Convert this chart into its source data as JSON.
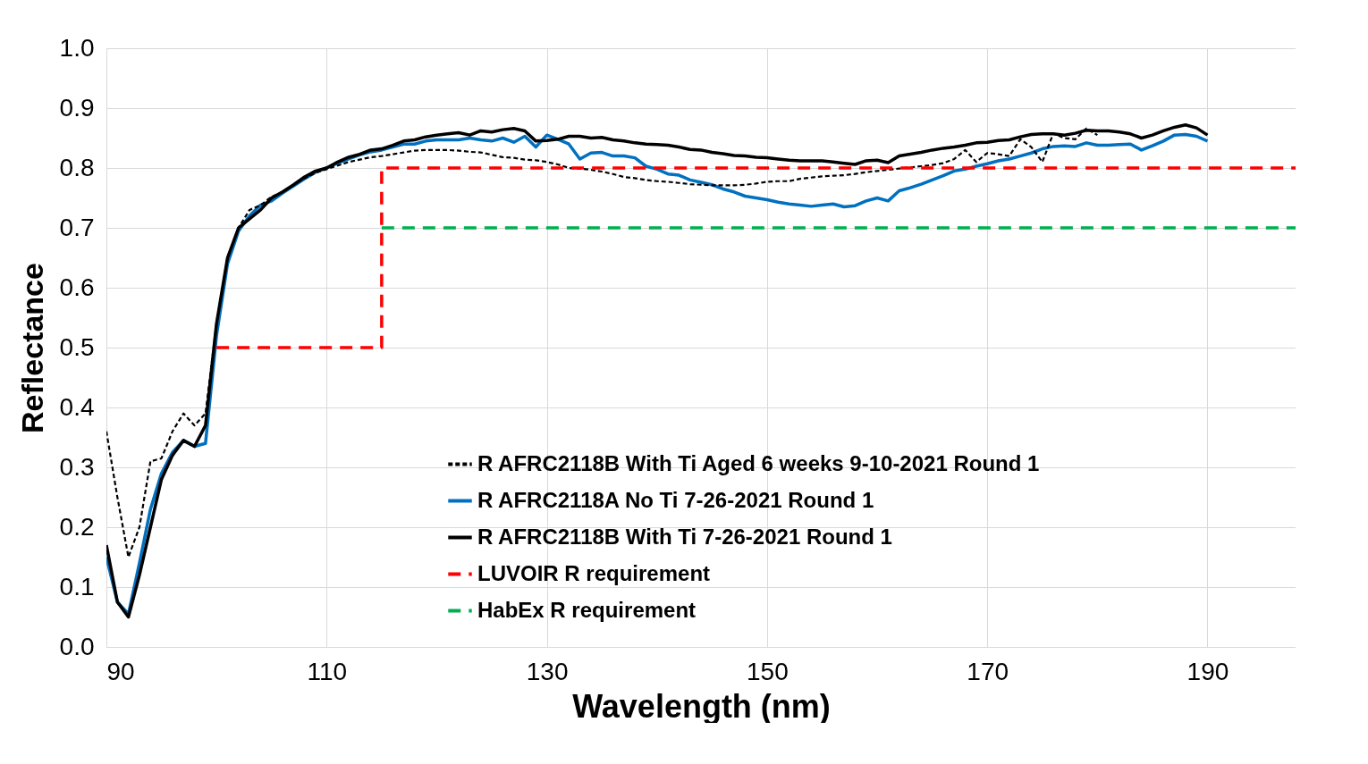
{
  "chart_data": {
    "type": "line",
    "xlabel": "Wavelength (nm)",
    "ylabel": "Reflectance",
    "xlim": [
      90,
      198
    ],
    "xticks": [
      90,
      110,
      130,
      150,
      170,
      190
    ],
    "ylim": [
      0,
      1
    ],
    "yticks": [
      {
        "value": 0,
        "label": "0.0"
      },
      0.1,
      0.2,
      0.3,
      0.4,
      0.5,
      0.6,
      0.7,
      0.8,
      0.9,
      {
        "value": 1,
        "label": "1.0"
      }
    ],
    "grid": true,
    "legend": "bottom",
    "marker": "none",
    "series": [
      {
        "name": "R AFRC2118B With Ti Aged 6 weeks 9-10-2021 Round 1",
        "color": "#000000",
        "line_style": "dotted",
        "x": [
          90,
          91,
          92,
          93,
          94,
          95,
          96,
          97,
          98,
          99,
          100,
          101,
          102,
          103,
          104,
          105,
          106,
          107,
          108,
          109,
          110,
          111,
          112,
          113,
          114,
          115,
          116,
          117,
          118,
          119,
          120,
          121,
          122,
          123,
          124,
          125,
          126,
          127,
          128,
          129,
          130,
          131,
          132,
          133,
          134,
          135,
          136,
          137,
          138,
          139,
          140,
          141,
          142,
          143,
          144,
          145,
          146,
          147,
          148,
          149,
          150,
          151,
          152,
          153,
          154,
          155,
          156,
          157,
          158,
          159,
          160,
          161,
          162,
          163,
          164,
          165,
          166,
          167,
          168,
          169,
          170,
          171,
          172,
          173,
          174,
          175,
          176,
          177,
          178,
          179,
          180
        ],
        "values": [
          0.36,
          0.25,
          0.15,
          0.2,
          0.31,
          0.315,
          0.36,
          0.39,
          0.37,
          0.39,
          0.54,
          0.65,
          0.7,
          0.73,
          0.738,
          0.752,
          0.76,
          0.772,
          0.783,
          0.792,
          0.798,
          0.804,
          0.81,
          0.814,
          0.818,
          0.82,
          0.823,
          0.826,
          0.829,
          0.83,
          0.83,
          0.83,
          0.829,
          0.827,
          0.826,
          0.822,
          0.818,
          0.817,
          0.814,
          0.813,
          0.81,
          0.806,
          0.8,
          0.799,
          0.797,
          0.794,
          0.79,
          0.785,
          0.783,
          0.78,
          0.778,
          0.777,
          0.775,
          0.773,
          0.772,
          0.771,
          0.771,
          0.771,
          0.772,
          0.774,
          0.777,
          0.778,
          0.778,
          0.782,
          0.784,
          0.786,
          0.787,
          0.788,
          0.79,
          0.793,
          0.795,
          0.797,
          0.799,
          0.801,
          0.803,
          0.805,
          0.808,
          0.815,
          0.83,
          0.81,
          0.825,
          0.823,
          0.82,
          0.848,
          0.835,
          0.81,
          0.858,
          0.85,
          0.848,
          0.866,
          0.855
        ]
      },
      {
        "name": "R AFRC2118A No Ti 7-26-2021 Round 1",
        "color": "#0070c0",
        "line_style": "solid",
        "x": [
          90,
          91,
          92,
          93,
          94,
          95,
          96,
          97,
          98,
          99,
          100,
          101,
          102,
          103,
          104,
          105,
          106,
          107,
          108,
          109,
          110,
          111,
          112,
          113,
          114,
          115,
          116,
          117,
          118,
          119,
          120,
          121,
          122,
          123,
          124,
          125,
          126,
          127,
          128,
          129,
          130,
          131,
          132,
          133,
          134,
          135,
          136,
          137,
          138,
          139,
          140,
          141,
          142,
          143,
          144,
          145,
          146,
          147,
          148,
          149,
          150,
          151,
          152,
          153,
          154,
          155,
          156,
          157,
          158,
          159,
          160,
          161,
          162,
          163,
          164,
          165,
          166,
          167,
          168,
          169,
          170,
          171,
          172,
          173,
          174,
          175,
          176,
          177,
          178,
          179,
          180,
          181,
          182,
          183,
          184,
          185,
          186,
          187,
          188,
          189,
          190
        ],
        "values": [
          0.15,
          0.075,
          0.055,
          0.14,
          0.23,
          0.29,
          0.325,
          0.345,
          0.335,
          0.34,
          0.52,
          0.64,
          0.695,
          0.72,
          0.738,
          0.745,
          0.758,
          0.77,
          0.782,
          0.793,
          0.8,
          0.808,
          0.815,
          0.822,
          0.827,
          0.83,
          0.835,
          0.84,
          0.84,
          0.845,
          0.847,
          0.847,
          0.847,
          0.85,
          0.847,
          0.845,
          0.85,
          0.843,
          0.853,
          0.835,
          0.855,
          0.848,
          0.84,
          0.815,
          0.825,
          0.826,
          0.82,
          0.82,
          0.817,
          0.803,
          0.798,
          0.79,
          0.788,
          0.78,
          0.776,
          0.772,
          0.765,
          0.76,
          0.753,
          0.75,
          0.747,
          0.743,
          0.74,
          0.738,
          0.736,
          0.738,
          0.74,
          0.735,
          0.737,
          0.745,
          0.75,
          0.745,
          0.762,
          0.767,
          0.773,
          0.78,
          0.787,
          0.795,
          0.798,
          0.803,
          0.807,
          0.812,
          0.815,
          0.82,
          0.825,
          0.832,
          0.836,
          0.837,
          0.836,
          0.842,
          0.838,
          0.838,
          0.839,
          0.84,
          0.83,
          0.837,
          0.845,
          0.855,
          0.856,
          0.853,
          0.845
        ]
      },
      {
        "name": "R AFRC2118B With Ti 7-26-2021 Round 1",
        "color": "#000000",
        "line_style": "solid",
        "x": [
          90,
          91,
          92,
          93,
          94,
          95,
          96,
          97,
          98,
          99,
          100,
          101,
          102,
          103,
          104,
          105,
          106,
          107,
          108,
          109,
          110,
          111,
          112,
          113,
          114,
          115,
          116,
          117,
          118,
          119,
          120,
          121,
          122,
          123,
          124,
          125,
          126,
          127,
          128,
          129,
          130,
          131,
          132,
          133,
          134,
          135,
          136,
          137,
          138,
          139,
          140,
          141,
          142,
          143,
          144,
          145,
          146,
          147,
          148,
          149,
          150,
          151,
          152,
          153,
          154,
          155,
          156,
          157,
          158,
          159,
          160,
          161,
          162,
          163,
          164,
          165,
          166,
          167,
          168,
          169,
          170,
          171,
          172,
          173,
          174,
          175,
          176,
          177,
          178,
          179,
          180,
          181,
          182,
          183,
          184,
          185,
          186,
          187,
          188,
          189,
          190
        ],
        "values": [
          0.17,
          0.075,
          0.05,
          0.12,
          0.2,
          0.28,
          0.32,
          0.345,
          0.335,
          0.37,
          0.54,
          0.65,
          0.7,
          0.715,
          0.73,
          0.75,
          0.76,
          0.772,
          0.785,
          0.795,
          0.8,
          0.81,
          0.818,
          0.823,
          0.83,
          0.832,
          0.838,
          0.845,
          0.847,
          0.852,
          0.855,
          0.857,
          0.859,
          0.855,
          0.862,
          0.86,
          0.864,
          0.866,
          0.862,
          0.845,
          0.846,
          0.848,
          0.853,
          0.853,
          0.85,
          0.851,
          0.847,
          0.845,
          0.842,
          0.84,
          0.839,
          0.838,
          0.835,
          0.831,
          0.83,
          0.826,
          0.824,
          0.821,
          0.82,
          0.818,
          0.817,
          0.815,
          0.813,
          0.812,
          0.812,
          0.812,
          0.81,
          0.808,
          0.806,
          0.812,
          0.813,
          0.809,
          0.82,
          0.823,
          0.826,
          0.83,
          0.833,
          0.835,
          0.838,
          0.842,
          0.843,
          0.846,
          0.847,
          0.852,
          0.856,
          0.857,
          0.857,
          0.855,
          0.858,
          0.863,
          0.862,
          0.862,
          0.86,
          0.857,
          0.85,
          0.855,
          0.862,
          0.868,
          0.872,
          0.867,
          0.855
        ]
      },
      {
        "name": "LUVOIR R requirement",
        "color": "#ff0000",
        "line_style": "dashed",
        "x": [
          100,
          115,
          115,
          198
        ],
        "values": [
          0.5,
          0.5,
          0.8,
          0.8
        ]
      },
      {
        "name": "HabEx R requirement",
        "color": "#00b050",
        "line_style": "dashed",
        "x": [
          115,
          198
        ],
        "values": [
          0.7,
          0.7
        ]
      }
    ]
  }
}
